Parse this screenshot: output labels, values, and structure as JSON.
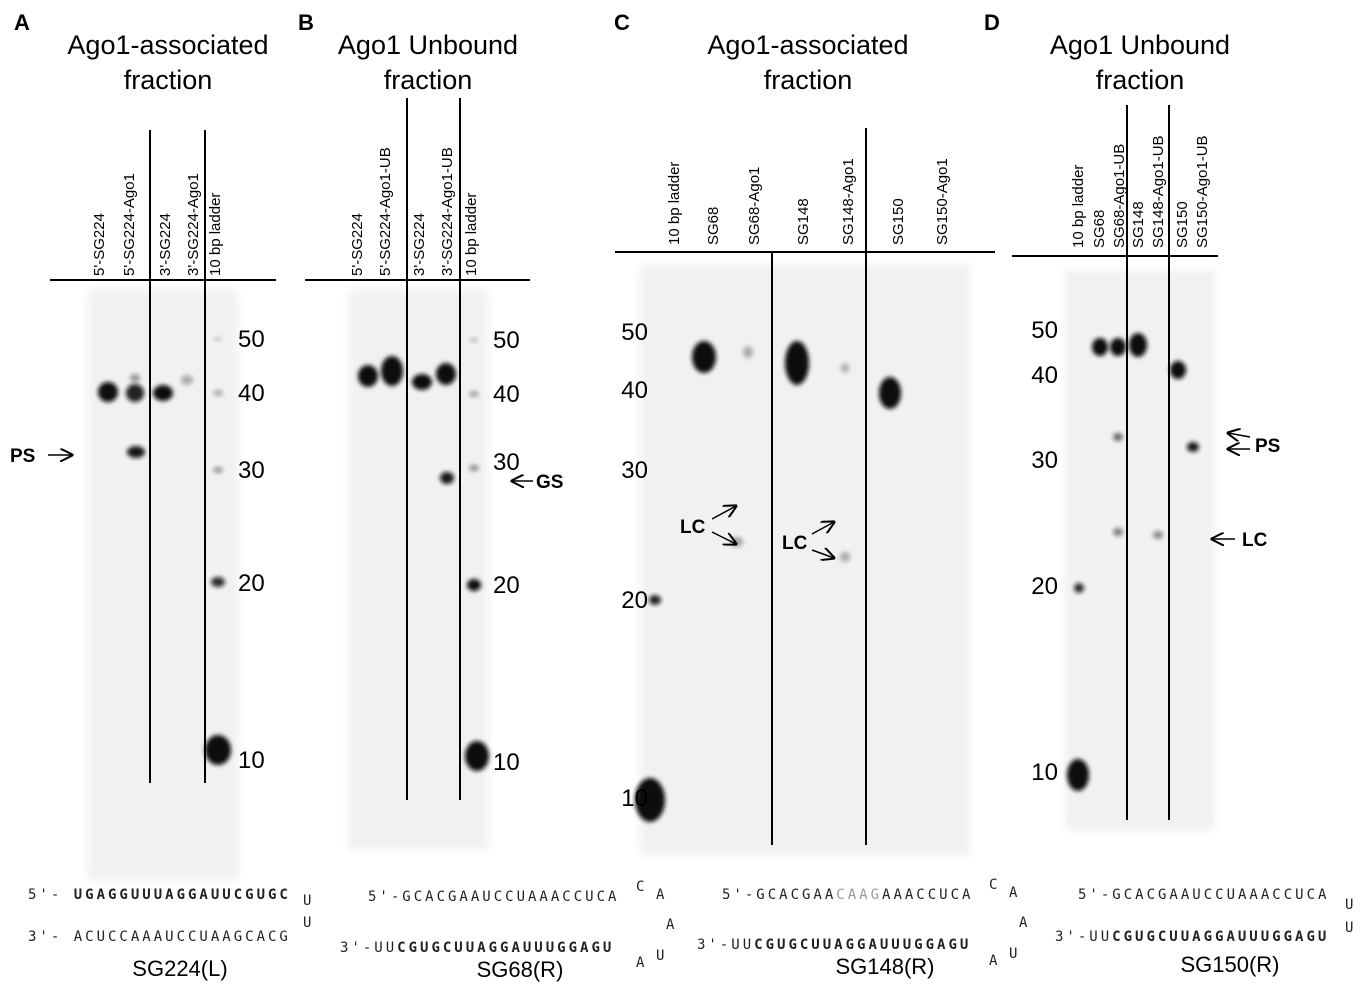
{
  "panels": [
    {
      "letter": "A",
      "title": [
        "Ago1-associated",
        "fraction"
      ],
      "lanes": [
        "5'-SG224",
        "5'-SG224-Ago1",
        "3'-SG224",
        "3'-SG224-Ago1",
        "10 bp ladder"
      ],
      "markers": [
        50,
        40,
        30,
        20,
        10
      ],
      "annotations": [
        "PS"
      ],
      "sequence": {
        "top": [
          "5'- ",
          "UGAGGUUUAGGAUUCGUGC"
        ],
        "bottom": [
          "3'- ",
          "ACUCCAAAUCCUAAGCACG"
        ],
        "loop": [
          "U",
          "U"
        ]
      },
      "name": "SG224(L)"
    },
    {
      "letter": "B",
      "title": [
        "Ago1 Unbound",
        "fraction"
      ],
      "lanes": [
        "5'-SG224",
        "5'-SG224-Ago1-UB",
        "3'-SG224",
        "3'-SG224-Ago1-UB",
        "10 bp ladder"
      ],
      "markers": [
        50,
        40,
        30,
        20,
        10
      ],
      "annotations": [
        "GS"
      ],
      "sequence": {
        "top": [
          "5'-GCACGAAUCCUAAACCUCA"
        ],
        "bottom": [
          "3'-UU",
          "CGUGCUUAGGAUUUGGAGU"
        ],
        "loop": [
          "C",
          "A",
          "A",
          "U",
          "A"
        ]
      },
      "name": "SG68(R)"
    },
    {
      "letter": "C",
      "title": [
        "Ago1-associated",
        "fraction"
      ],
      "lanes": [
        "10 bp ladder",
        "SG68",
        "SG68-Ago1",
        "SG148",
        "SG148-Ago1",
        "SG150",
        "SG150-Ago1"
      ],
      "markers": [
        50,
        40,
        30,
        20,
        10
      ],
      "annotations": [
        "LC",
        "LC"
      ],
      "sequence": {
        "top": [
          "5'-GCACGAA",
          "CAAG",
          "AAACCUCA"
        ],
        "bottom": [
          "3'-UU",
          "CGUGCUUAGGAUUUGGAGU"
        ],
        "loop": [
          "C",
          "A",
          "A",
          "U",
          "A"
        ]
      },
      "name": "SG148(R)"
    },
    {
      "letter": "D",
      "title": [
        "Ago1 Unbound",
        "fraction"
      ],
      "lanes": [
        "10 bp ladder",
        "SG68",
        "SG68-Ago1-UB",
        "SG148",
        "SG148-Ago1-UB",
        "SG150",
        "SG150-Ago1-UB"
      ],
      "markers": [
        50,
        40,
        30,
        20,
        10
      ],
      "annotations": [
        "PS",
        "LC"
      ],
      "sequence": {
        "top": [
          "5'-GCACGAAUCCUAAACCUCA"
        ],
        "bottom": [
          "3'-UU",
          "CGUGCUUAGGAUUUGGAGU"
        ],
        "loop": [
          "U",
          "U"
        ]
      },
      "name": "SG150(R)"
    }
  ]
}
